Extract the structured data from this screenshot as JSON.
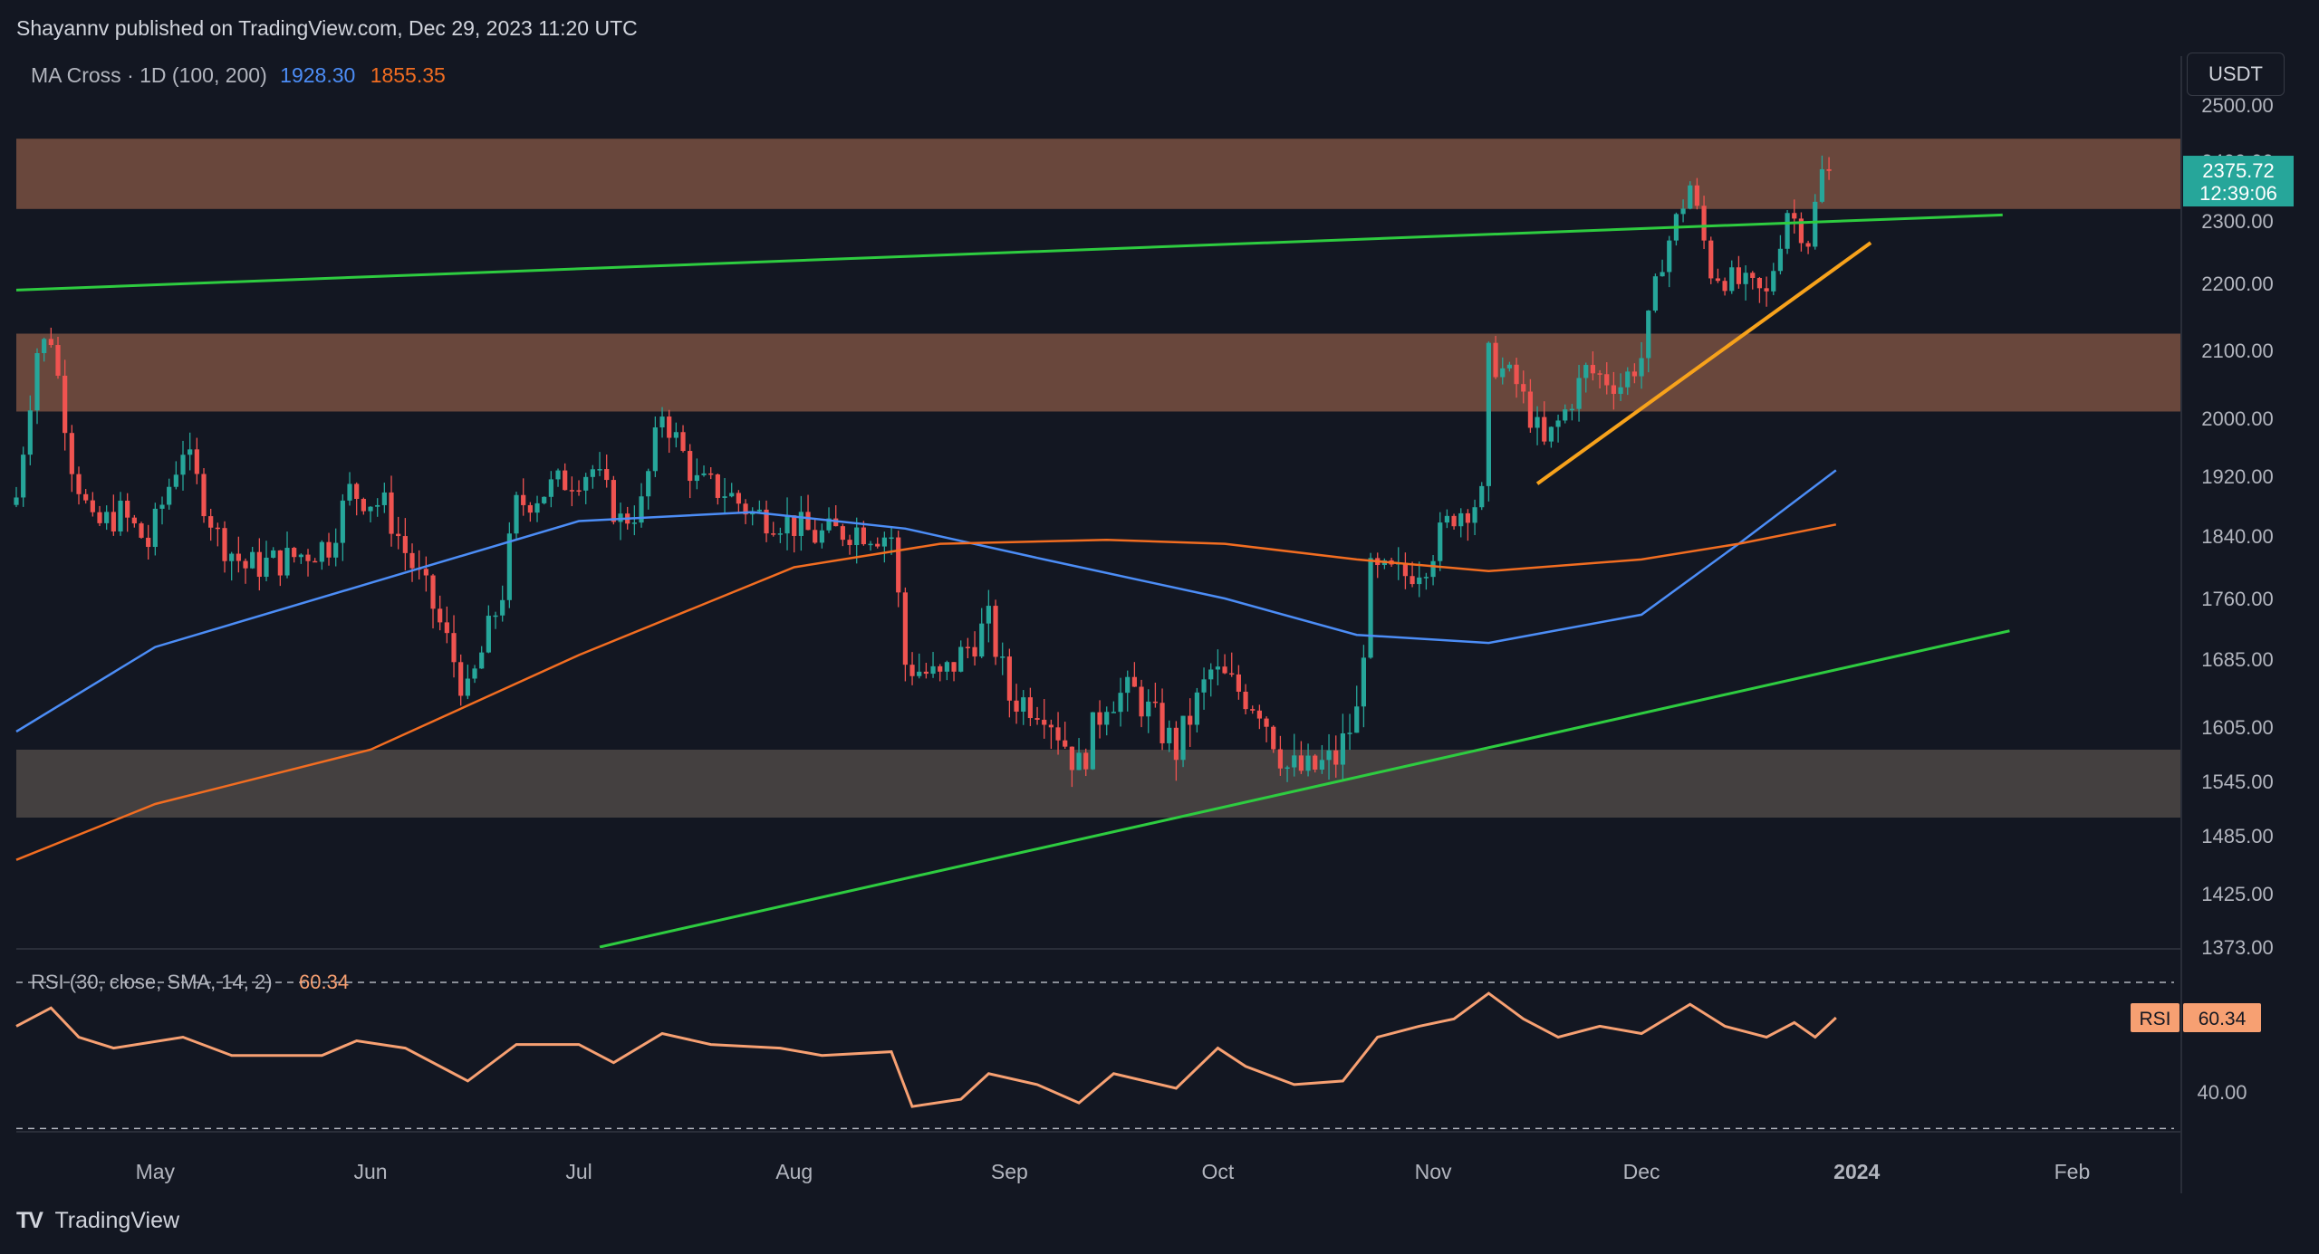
{
  "header": {
    "published": "Shayannv published on TradingView.com, Dec 29, 2023 11:20 UTC",
    "indicator_label": "MA Cross · 1D (100, 200)",
    "ma100_value": "1928.30",
    "ma200_value": "1855.35",
    "currency": "USDT"
  },
  "price_tag": {
    "price": "2375.72",
    "countdown": "12:39:06"
  },
  "rsi_panel": {
    "label": "RSI (30, close, SMA, 14, 2)",
    "value": "60.34",
    "badge_label": "RSI",
    "level_label": "40.00"
  },
  "footer": {
    "brand": "TradingView"
  },
  "colors": {
    "background": "#131722",
    "up": "#26a69a",
    "down": "#ef5350",
    "ma100": "#4c8df6",
    "ma200": "#f26d21",
    "trendline": "#2ecc40",
    "support_line": "#f7a21b",
    "zone_brown": "#6e4a3e",
    "zone_gray": "#4a4544",
    "rsi": "#f7a072"
  },
  "chart_data": {
    "type": "line",
    "symbol_quote": "USDT",
    "timeframe": "1D",
    "price_ticks": [
      "2500.00",
      "2400.00",
      "2300.00",
      "2200.00",
      "2100.00",
      "2000.00",
      "1920.00",
      "1840.00",
      "1760.00",
      "1685.00",
      "1605.00",
      "1545.00",
      "1485.00",
      "1425.00",
      "1373.00"
    ],
    "x_ticks": [
      "May",
      "Jun",
      "Jul",
      "Aug",
      "Sep",
      "Oct",
      "Nov",
      "Dec",
      "2024",
      "Feb"
    ],
    "close_series": [
      {
        "date": "2023-04-11",
        "close": 1892
      },
      {
        "date": "2023-04-14",
        "close": 2100
      },
      {
        "date": "2023-04-16",
        "close": 2120
      },
      {
        "date": "2023-04-19",
        "close": 1940
      },
      {
        "date": "2023-04-22",
        "close": 1850
      },
      {
        "date": "2023-04-26",
        "close": 1870
      },
      {
        "date": "2023-04-30",
        "close": 1830
      },
      {
        "date": "2023-05-05",
        "close": 1960
      },
      {
        "date": "2023-05-10",
        "close": 1840
      },
      {
        "date": "2023-05-14",
        "close": 1800
      },
      {
        "date": "2023-05-20",
        "close": 1810
      },
      {
        "date": "2023-05-26",
        "close": 1830
      },
      {
        "date": "2023-05-29",
        "close": 1900
      },
      {
        "date": "2023-06-03",
        "close": 1880
      },
      {
        "date": "2023-06-06",
        "close": 1820
      },
      {
        "date": "2023-06-10",
        "close": 1750
      },
      {
        "date": "2023-06-15",
        "close": 1640
      },
      {
        "date": "2023-06-20",
        "close": 1770
      },
      {
        "date": "2023-06-22",
        "close": 1880
      },
      {
        "date": "2023-06-28",
        "close": 1910
      },
      {
        "date": "2023-07-03",
        "close": 1930
      },
      {
        "date": "2023-07-07",
        "close": 1860
      },
      {
        "date": "2023-07-10",
        "close": 1880
      },
      {
        "date": "2023-07-13",
        "close": 2010
      },
      {
        "date": "2023-07-18",
        "close": 1910
      },
      {
        "date": "2023-07-22",
        "close": 1900
      },
      {
        "date": "2023-07-26",
        "close": 1870
      },
      {
        "date": "2023-07-31",
        "close": 1860
      },
      {
        "date": "2023-08-04",
        "close": 1840
      },
      {
        "date": "2023-08-10",
        "close": 1850
      },
      {
        "date": "2023-08-15",
        "close": 1840
      },
      {
        "date": "2023-08-17",
        "close": 1680
      },
      {
        "date": "2023-08-22",
        "close": 1660
      },
      {
        "date": "2023-08-29",
        "close": 1730
      },
      {
        "date": "2023-09-01",
        "close": 1640
      },
      {
        "date": "2023-09-06",
        "close": 1630
      },
      {
        "date": "2023-09-11",
        "close": 1560
      },
      {
        "date": "2023-09-15",
        "close": 1640
      },
      {
        "date": "2023-09-19",
        "close": 1645
      },
      {
        "date": "2023-09-25",
        "close": 1580
      },
      {
        "date": "2023-09-30",
        "close": 1670
      },
      {
        "date": "2023-10-02",
        "close": 1660
      },
      {
        "date": "2023-10-07",
        "close": 1630
      },
      {
        "date": "2023-10-11",
        "close": 1560
      },
      {
        "date": "2023-10-14",
        "close": 1555
      },
      {
        "date": "2023-10-18",
        "close": 1570
      },
      {
        "date": "2023-10-21",
        "close": 1620
      },
      {
        "date": "2023-10-23",
        "close": 1790
      },
      {
        "date": "2023-10-28",
        "close": 1790
      },
      {
        "date": "2023-10-31",
        "close": 1810
      },
      {
        "date": "2023-11-04",
        "close": 1870
      },
      {
        "date": "2023-11-08",
        "close": 1890
      },
      {
        "date": "2023-11-09",
        "close": 2090
      },
      {
        "date": "2023-11-13",
        "close": 2050
      },
      {
        "date": "2023-11-17",
        "close": 1960
      },
      {
        "date": "2023-11-20",
        "close": 2010
      },
      {
        "date": "2023-11-23",
        "close": 2070
      },
      {
        "date": "2023-11-28",
        "close": 2050
      },
      {
        "date": "2023-12-01",
        "close": 2090
      },
      {
        "date": "2023-12-04",
        "close": 2240
      },
      {
        "date": "2023-12-08",
        "close": 2360
      },
      {
        "date": "2023-12-11",
        "close": 2220
      },
      {
        "date": "2023-12-15",
        "close": 2200
      },
      {
        "date": "2023-12-19",
        "close": 2180
      },
      {
        "date": "2023-12-22",
        "close": 2320
      },
      {
        "date": "2023-12-25",
        "close": 2270
      },
      {
        "date": "2023-12-27",
        "close": 2380
      },
      {
        "date": "2023-12-29",
        "close": 2375.72
      }
    ],
    "ma100": [
      {
        "date": "2023-04-11",
        "value": 1600
      },
      {
        "date": "2023-05-01",
        "value": 1700
      },
      {
        "date": "2023-06-01",
        "value": 1780
      },
      {
        "date": "2023-07-01",
        "value": 1860
      },
      {
        "date": "2023-07-26",
        "value": 1872
      },
      {
        "date": "2023-08-17",
        "value": 1850
      },
      {
        "date": "2023-09-06",
        "value": 1810
      },
      {
        "date": "2023-10-02",
        "value": 1760
      },
      {
        "date": "2023-10-21",
        "value": 1715
      },
      {
        "date": "2023-11-09",
        "value": 1705
      },
      {
        "date": "2023-12-01",
        "value": 1740
      },
      {
        "date": "2023-12-15",
        "value": 1830
      },
      {
        "date": "2023-12-29",
        "value": 1928.3
      }
    ],
    "ma200": [
      {
        "date": "2023-04-11",
        "value": 1460
      },
      {
        "date": "2023-05-01",
        "value": 1520
      },
      {
        "date": "2023-06-01",
        "value": 1580
      },
      {
        "date": "2023-07-01",
        "value": 1690
      },
      {
        "date": "2023-08-01",
        "value": 1800
      },
      {
        "date": "2023-08-22",
        "value": 1830
      },
      {
        "date": "2023-09-15",
        "value": 1835
      },
      {
        "date": "2023-10-02",
        "value": 1830
      },
      {
        "date": "2023-10-21",
        "value": 1810
      },
      {
        "date": "2023-11-09",
        "value": 1795
      },
      {
        "date": "2023-12-01",
        "value": 1810
      },
      {
        "date": "2023-12-15",
        "value": 1830
      },
      {
        "date": "2023-12-29",
        "value": 1855.35
      }
    ],
    "zones": [
      {
        "low": 2320,
        "high": 2440,
        "color": "brown"
      },
      {
        "low": 2010,
        "high": 2125,
        "color": "brown"
      },
      {
        "low": 1505,
        "high": 1580,
        "color": "gray"
      }
    ],
    "trendlines": [
      {
        "name": "upper-channel",
        "from": {
          "date": "2023-04-11",
          "price": 2190
        },
        "to": {
          "date": "2024-01-22",
          "price": 2310
        },
        "color": "green"
      },
      {
        "name": "lower-channel",
        "from": {
          "date": "2023-07-04",
          "price": 1373
        },
        "to": {
          "date": "2024-01-23",
          "price": 1720
        },
        "color": "green"
      },
      {
        "name": "ascending-support",
        "from": {
          "date": "2023-11-16",
          "price": 1910
        },
        "to": {
          "date": "2024-01-03",
          "price": 2265
        },
        "color": "orange"
      }
    ],
    "rsi": {
      "period": 30,
      "source": "close",
      "ma_type": "SMA",
      "ma_length": 14,
      "bb_mult": 2,
      "last": 60.34,
      "levels_dashed": [
        70,
        30
      ],
      "series": [
        {
          "date": "2023-04-11",
          "value": 58
        },
        {
          "date": "2023-04-16",
          "value": 63
        },
        {
          "date": "2023-04-20",
          "value": 55
        },
        {
          "date": "2023-04-25",
          "value": 52
        },
        {
          "date": "2023-05-05",
          "value": 55
        },
        {
          "date": "2023-05-12",
          "value": 50
        },
        {
          "date": "2023-05-25",
          "value": 50
        },
        {
          "date": "2023-05-30",
          "value": 54
        },
        {
          "date": "2023-06-06",
          "value": 52
        },
        {
          "date": "2023-06-15",
          "value": 43
        },
        {
          "date": "2023-06-22",
          "value": 53
        },
        {
          "date": "2023-07-01",
          "value": 53
        },
        {
          "date": "2023-07-06",
          "value": 48
        },
        {
          "date": "2023-07-13",
          "value": 56
        },
        {
          "date": "2023-07-20",
          "value": 53
        },
        {
          "date": "2023-07-30",
          "value": 52
        },
        {
          "date": "2023-08-05",
          "value": 50
        },
        {
          "date": "2023-08-15",
          "value": 51
        },
        {
          "date": "2023-08-18",
          "value": 36
        },
        {
          "date": "2023-08-25",
          "value": 38
        },
        {
          "date": "2023-08-29",
          "value": 45
        },
        {
          "date": "2023-09-05",
          "value": 42
        },
        {
          "date": "2023-09-11",
          "value": 37
        },
        {
          "date": "2023-09-16",
          "value": 45
        },
        {
          "date": "2023-09-25",
          "value": 41
        },
        {
          "date": "2023-10-01",
          "value": 52
        },
        {
          "date": "2023-10-05",
          "value": 47
        },
        {
          "date": "2023-10-12",
          "value": 42
        },
        {
          "date": "2023-10-19",
          "value": 43
        },
        {
          "date": "2023-10-24",
          "value": 55
        },
        {
          "date": "2023-10-30",
          "value": 58
        },
        {
          "date": "2023-11-04",
          "value": 60
        },
        {
          "date": "2023-11-09",
          "value": 67
        },
        {
          "date": "2023-11-14",
          "value": 60
        },
        {
          "date": "2023-11-19",
          "value": 55
        },
        {
          "date": "2023-11-25",
          "value": 58
        },
        {
          "date": "2023-12-01",
          "value": 56
        },
        {
          "date": "2023-12-08",
          "value": 64
        },
        {
          "date": "2023-12-13",
          "value": 58
        },
        {
          "date": "2023-12-19",
          "value": 55
        },
        {
          "date": "2023-12-23",
          "value": 59
        },
        {
          "date": "2023-12-26",
          "value": 55
        },
        {
          "date": "2023-12-29",
          "value": 60.34
        }
      ]
    }
  }
}
